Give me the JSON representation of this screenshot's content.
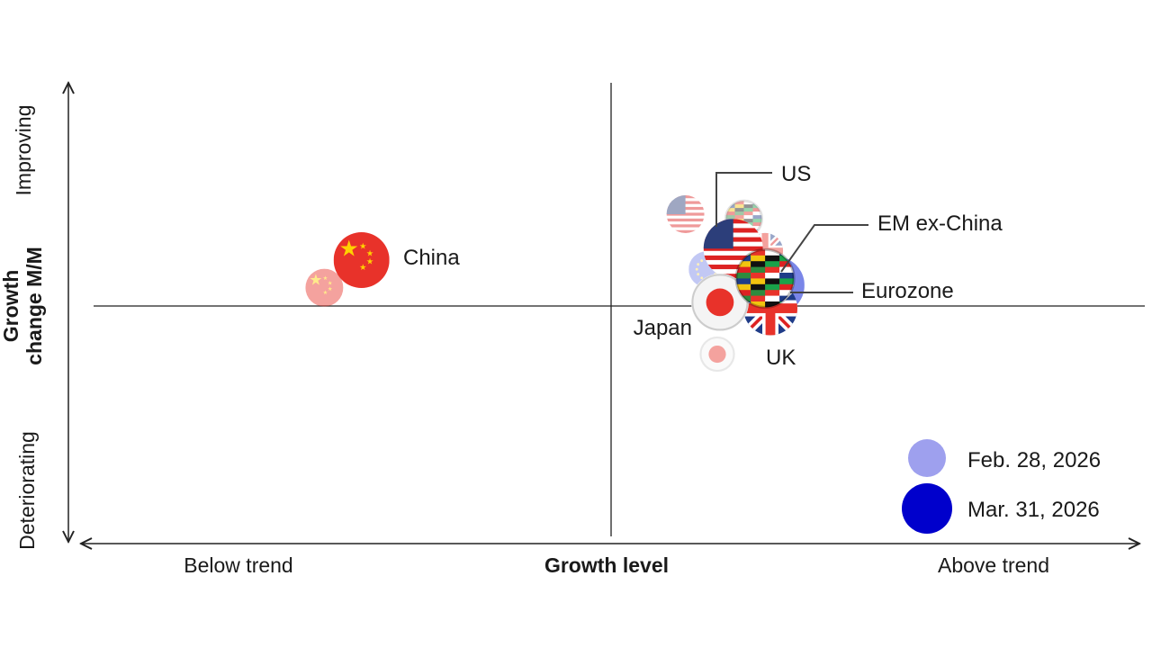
{
  "chart_data": {
    "type": "scatter",
    "title": "",
    "xlabel": "Growth level",
    "ylabel": "Growth change M/M",
    "x_tick_labels": {
      "low": "Below trend",
      "high": "Above trend"
    },
    "y_tick_labels": {
      "low": "Deteriorating",
      "high": "Improving"
    },
    "xlim": [
      -1,
      1
    ],
    "ylim": [
      -1,
      1
    ],
    "grid": false,
    "legend_placement": "bottom-right",
    "series": [
      {
        "name": "Feb. 28, 2026",
        "color": "#9ea0ee",
        "points": [
          {
            "label": "US",
            "x": 0.14,
            "y": 0.4
          },
          {
            "label": "EM ex-China",
            "x": 0.25,
            "y": 0.38
          },
          {
            "label": "UK",
            "x": 0.29,
            "y": 0.24
          },
          {
            "label": "Eurozone",
            "x": 0.18,
            "y": 0.16
          },
          {
            "label": "China",
            "x": -0.54,
            "y": 0.08
          },
          {
            "label": "Japan",
            "x": 0.2,
            "y": -0.21
          }
        ]
      },
      {
        "name": "Mar. 31, 2026",
        "color": "#0000cc",
        "points": [
          {
            "label": "US",
            "x": 0.23,
            "y": 0.25
          },
          {
            "label": "Eurozone",
            "x": 0.31,
            "y": 0.09
          },
          {
            "label": "China",
            "x": -0.47,
            "y": 0.2
          },
          {
            "label": "UK",
            "x": 0.3,
            "y": -0.01
          },
          {
            "label": "Japan",
            "x": 0.205,
            "y": 0.016
          },
          {
            "label": "EM ex-China",
            "x": 0.29,
            "y": 0.12
          }
        ]
      }
    ],
    "point_labels": [
      "US",
      "EM ex-China",
      "Eurozone",
      "China",
      "Japan",
      "UK"
    ]
  }
}
